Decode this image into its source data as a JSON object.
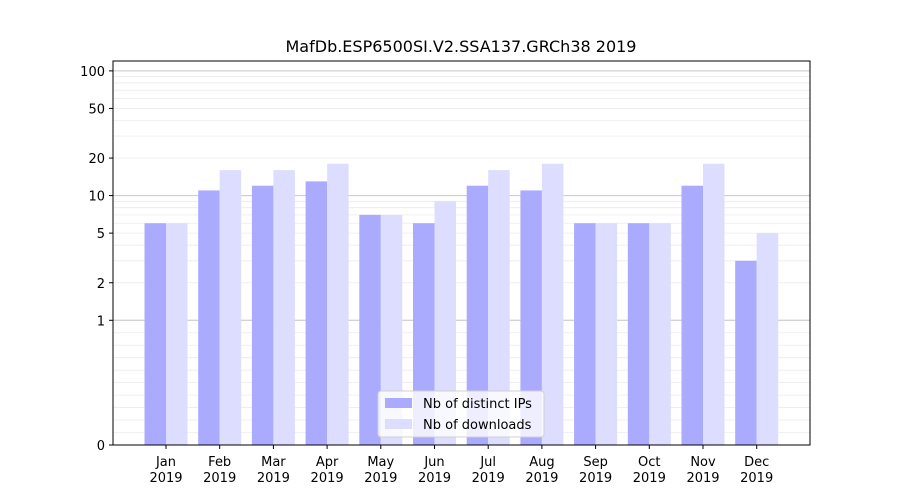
{
  "chart_data": {
    "type": "bar",
    "title": "MafDb.ESP6500SI.V2.SSA137.GRCh38 2019",
    "xlabel": "",
    "ylabel": "",
    "y_scale": "symlog",
    "ylim": [
      0,
      120
    ],
    "y_ticks": [
      0,
      1,
      2,
      5,
      10,
      20,
      50,
      100
    ],
    "grid": true,
    "legend_position": "bottom-center",
    "categories": [
      "Jan\n2019",
      "Feb\n2019",
      "Mar\n2019",
      "Apr\n2019",
      "May\n2019",
      "Jun\n2019",
      "Jul\n2019",
      "Aug\n2019",
      "Sep\n2019",
      "Oct\n2019",
      "Nov\n2019",
      "Dec\n2019"
    ],
    "series": [
      {
        "name": "Nb of distinct IPs",
        "color": "#aaaaff",
        "values": [
          6,
          11,
          12,
          13,
          7,
          6,
          12,
          11,
          6,
          6,
          12,
          3
        ]
      },
      {
        "name": "Nb of downloads",
        "color": "#ddddff",
        "values": [
          6,
          16,
          16,
          18,
          7,
          9,
          16,
          18,
          6,
          6,
          18,
          5
        ]
      }
    ]
  }
}
